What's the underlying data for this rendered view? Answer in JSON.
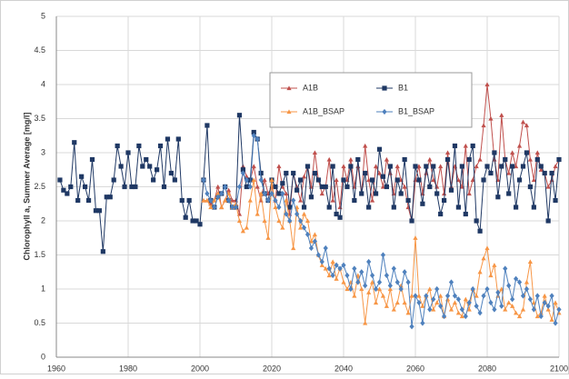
{
  "chart_data": {
    "type": "line",
    "y_label": "Chlorophyll a, Summer Average [mg/l]",
    "x": [
      1961,
      1962,
      1963,
      1964,
      1965,
      1966,
      1967,
      1968,
      1969,
      1970,
      1971,
      1972,
      1973,
      1974,
      1975,
      1976,
      1977,
      1978,
      1979,
      1980,
      1981,
      1982,
      1983,
      1984,
      1985,
      1986,
      1987,
      1988,
      1989,
      1990,
      1991,
      1992,
      1993,
      1994,
      1995,
      1996,
      1997,
      1998,
      1999,
      2000,
      2001,
      2002,
      2003,
      2004,
      2005,
      2006,
      2007,
      2008,
      2009,
      2010,
      2011,
      2012,
      2013,
      2014,
      2015,
      2016,
      2017,
      2018,
      2019,
      2020,
      2021,
      2022,
      2023,
      2024,
      2025,
      2026,
      2027,
      2028,
      2029,
      2030,
      2031,
      2032,
      2033,
      2034,
      2035,
      2036,
      2037,
      2038,
      2039,
      2040,
      2041,
      2042,
      2043,
      2044,
      2045,
      2046,
      2047,
      2048,
      2049,
      2050,
      2051,
      2052,
      2053,
      2054,
      2055,
      2056,
      2057,
      2058,
      2059,
      2060,
      2061,
      2062,
      2063,
      2064,
      2065,
      2066,
      2067,
      2068,
      2069,
      2070,
      2071,
      2072,
      2073,
      2074,
      2075,
      2076,
      2077,
      2078,
      2079,
      2080,
      2081,
      2082,
      2083,
      2084,
      2085,
      2086,
      2087,
      2088,
      2089,
      2090,
      2091,
      2092,
      2093,
      2094,
      2095,
      2096,
      2097,
      2098,
      2099,
      2100
    ],
    "series": [
      {
        "name": "A1B",
        "color": "#c0504d",
        "marker": "triangle",
        "values": [
          null,
          null,
          null,
          null,
          null,
          null,
          null,
          null,
          null,
          null,
          null,
          null,
          null,
          null,
          null,
          null,
          null,
          null,
          null,
          null,
          null,
          null,
          null,
          null,
          null,
          null,
          null,
          null,
          null,
          null,
          null,
          null,
          null,
          null,
          null,
          null,
          null,
          null,
          null,
          null,
          2.3,
          2.3,
          2.25,
          2.3,
          2.5,
          2.2,
          2.3,
          2.45,
          2.3,
          2.3,
          2.1,
          2.8,
          2.65,
          2.6,
          2.8,
          2.5,
          2.3,
          2.6,
          2.4,
          2.5,
          2.3,
          2.8,
          2.5,
          2.4,
          2.1,
          2.7,
          2.5,
          2.3,
          2.65,
          2.8,
          2.5,
          3.0,
          2.6,
          2.4,
          2.5,
          2.9,
          2.3,
          2.6,
          2.2,
          2.8,
          2.6,
          2.9,
          2.5,
          2.8,
          2.4,
          3.1,
          2.6,
          2.3,
          2.8,
          2.7,
          2.5,
          2.9,
          2.7,
          2.4,
          2.8,
          2.6,
          2.5,
          2.2,
          2.0,
          2.6,
          2.8,
          2.4,
          2.7,
          2.9,
          2.6,
          2.5,
          2.8,
          2.4,
          3.0,
          2.5,
          2.8,
          2.6,
          2.5,
          3.1,
          2.4,
          2.6,
          2.8,
          2.9,
          3.4,
          4.0,
          3.5,
          2.9,
          2.6,
          3.55,
          2.9,
          2.7,
          3.0,
          2.8,
          3.1,
          3.45,
          3.4,
          2.9,
          2.6,
          3.0,
          2.75,
          2.7,
          2.5,
          2.6,
          2.8,
          2.9
        ]
      },
      {
        "name": "B1",
        "color": "#1f3864",
        "marker": "square",
        "values": [
          2.6,
          2.45,
          2.4,
          2.5,
          3.15,
          2.3,
          2.65,
          2.5,
          2.3,
          2.9,
          2.15,
          2.15,
          1.55,
          2.35,
          2.35,
          2.6,
          3.1,
          2.8,
          2.5,
          3.0,
          2.5,
          2.5,
          3.1,
          2.8,
          2.9,
          2.8,
          2.6,
          2.75,
          3.1,
          2.5,
          3.2,
          2.7,
          2.6,
          3.2,
          2.3,
          2.05,
          2.3,
          2.0,
          2.0,
          1.95,
          2.6,
          3.4,
          2.3,
          2.2,
          2.35,
          2.4,
          2.5,
          2.3,
          2.2,
          2.2,
          3.55,
          2.75,
          2.5,
          2.6,
          3.3,
          3.2,
          2.7,
          2.4,
          2.3,
          2.6,
          2.5,
          2.4,
          2.55,
          2.7,
          2.2,
          2.7,
          2.45,
          2.6,
          2.2,
          2.8,
          2.35,
          2.7,
          2.6,
          2.5,
          2.5,
          2.2,
          2.8,
          2.1,
          2.05,
          2.6,
          2.5,
          2.8,
          2.3,
          2.9,
          2.4,
          2.7,
          2.2,
          2.6,
          2.4,
          3.05,
          2.65,
          2.5,
          2.8,
          2.2,
          2.6,
          2.4,
          2.9,
          2.3,
          2.0,
          2.8,
          2.6,
          2.25,
          2.8,
          2.5,
          2.8,
          2.4,
          2.1,
          2.3,
          2.9,
          2.45,
          3.1,
          2.2,
          2.8,
          2.1,
          2.9,
          3.1,
          2.0,
          1.85,
          2.6,
          2.8,
          2.7,
          3.0,
          2.35,
          2.8,
          2.9,
          2.4,
          2.8,
          2.2,
          2.6,
          2.8,
          3.0,
          2.5,
          2.2,
          2.9,
          2.8,
          2.7,
          2.0,
          2.7,
          2.3,
          2.9
        ]
      },
      {
        "name": "A1B_BSAP",
        "color": "#f79646",
        "marker": "triangle",
        "values": [
          null,
          null,
          null,
          null,
          null,
          null,
          null,
          null,
          null,
          null,
          null,
          null,
          null,
          null,
          null,
          null,
          null,
          null,
          null,
          null,
          null,
          null,
          null,
          null,
          null,
          null,
          null,
          null,
          null,
          null,
          null,
          null,
          null,
          null,
          null,
          null,
          null,
          null,
          null,
          null,
          2.3,
          2.3,
          2.2,
          2.3,
          2.4,
          2.2,
          2.3,
          2.4,
          2.2,
          2.25,
          2.0,
          1.85,
          1.9,
          2.3,
          2.6,
          2.1,
          2.4,
          2.0,
          1.75,
          2.6,
          2.2,
          2.0,
          1.9,
          2.3,
          2.0,
          1.6,
          2.2,
          1.9,
          2.1,
          2.0,
          1.7,
          1.8,
          1.5,
          1.35,
          1.3,
          1.2,
          1.4,
          1.15,
          1.3,
          1.1,
          1.0,
          1.1,
          0.9,
          1.2,
          1.0,
          0.5,
          0.95,
          1.1,
          0.8,
          1.0,
          0.9,
          0.75,
          1.0,
          0.7,
          0.8,
          1.05,
          0.8,
          0.65,
          0.9,
          1.75,
          0.9,
          0.75,
          0.9,
          1.0,
          0.7,
          0.8,
          0.9,
          0.6,
          0.85,
          0.7,
          0.8,
          0.65,
          0.6,
          0.85,
          0.7,
          1.0,
          0.9,
          1.25,
          1.45,
          1.6,
          1.2,
          1.35,
          0.9,
          1.0,
          0.7,
          0.8,
          0.75,
          0.65,
          0.6,
          0.7,
          1.1,
          1.4,
          0.8,
          0.6,
          0.65,
          0.9,
          0.7,
          0.55,
          0.8,
          0.65
        ]
      },
      {
        "name": "B1_BSAP",
        "color": "#4f81bd",
        "marker": "diamond",
        "values": [
          null,
          null,
          null,
          null,
          null,
          null,
          null,
          null,
          null,
          null,
          null,
          null,
          null,
          null,
          null,
          null,
          null,
          null,
          null,
          null,
          null,
          null,
          null,
          null,
          null,
          null,
          null,
          null,
          null,
          null,
          null,
          null,
          null,
          null,
          null,
          null,
          null,
          null,
          null,
          null,
          2.6,
          2.4,
          2.3,
          2.2,
          2.35,
          2.4,
          2.5,
          2.3,
          2.2,
          2.2,
          2.5,
          2.7,
          2.6,
          2.5,
          3.25,
          3.2,
          2.6,
          2.4,
          2.3,
          2.4,
          2.3,
          2.2,
          2.4,
          2.1,
          2.0,
          2.3,
          2.1,
          2.0,
          1.9,
          1.8,
          1.6,
          1.7,
          1.5,
          1.4,
          1.6,
          1.3,
          1.2,
          1.35,
          1.3,
          1.35,
          1.2,
          1.0,
          1.3,
          1.1,
          1.25,
          1.05,
          1.4,
          1.2,
          1.0,
          1.1,
          1.5,
          1.2,
          1.05,
          1.3,
          1.1,
          1.0,
          1.25,
          1.1,
          0.45,
          0.9,
          0.8,
          0.5,
          0.9,
          0.7,
          0.85,
          1.0,
          0.75,
          0.6,
          0.9,
          1.1,
          0.9,
          0.85,
          0.7,
          0.6,
          0.8,
          1.0,
          0.75,
          0.65,
          0.9,
          1.0,
          0.8,
          0.7,
          0.95,
          0.75,
          1.3,
          1.05,
          0.85,
          1.15,
          1.1,
          0.9,
          1.0,
          0.85,
          0.7,
          0.9,
          0.6,
          0.8,
          0.75,
          0.9,
          0.5,
          0.7
        ]
      }
    ],
    "xlim": [
      1960,
      2100
    ],
    "xticks": [
      1960,
      1980,
      2000,
      2020,
      2040,
      2060,
      2080,
      2100
    ],
    "ylim": [
      0,
      5
    ],
    "yticks": [
      0,
      0.5,
      1,
      1.5,
      2,
      2.5,
      3,
      3.5,
      4,
      4.5,
      5
    ],
    "grid": true,
    "legend": "upper center"
  }
}
